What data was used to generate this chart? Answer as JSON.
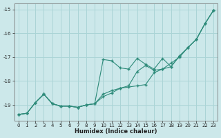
{
  "xlabel": "Humidex (Indice chaleur)",
  "bg_color": "#cce8ea",
  "grid_color": "#aad4d6",
  "line_color": "#2e8b7a",
  "x": [
    0,
    1,
    2,
    3,
    4,
    5,
    6,
    7,
    8,
    9,
    10,
    11,
    12,
    13,
    14,
    15,
    16,
    17,
    18,
    19,
    20,
    21,
    22,
    23
  ],
  "series1": [
    -19.4,
    -19.35,
    -18.9,
    -18.55,
    -18.95,
    -19.05,
    -19.05,
    -19.1,
    -19.0,
    -18.95,
    -17.1,
    -17.15,
    -17.45,
    -17.5,
    -17.05,
    -17.3,
    -17.5,
    -17.05,
    -17.4,
    -16.95,
    -16.6,
    -16.25,
    -15.6,
    -15.05
  ],
  "series2": [
    -19.4,
    -19.35,
    -18.9,
    -18.55,
    -18.95,
    -19.05,
    -19.05,
    -19.1,
    -19.0,
    -18.95,
    -18.55,
    -18.4,
    -18.3,
    -18.25,
    -18.2,
    -18.15,
    -17.65,
    -17.5,
    -17.4,
    -16.95,
    -16.6,
    -16.25,
    -15.6,
    -15.05
  ],
  "series3": [
    -19.4,
    -19.35,
    -18.9,
    -18.55,
    -18.95,
    -19.05,
    -19.05,
    -19.1,
    -19.0,
    -18.95,
    -18.65,
    -18.5,
    -18.3,
    -18.2,
    -17.6,
    -17.35,
    -17.55,
    -17.5,
    -17.25,
    -17.0,
    -16.6,
    -16.25,
    -15.6,
    -15.05
  ],
  "ylim": [
    -19.65,
    -14.75
  ],
  "xlim": [
    -0.5,
    23.5
  ],
  "yticks": [
    -19,
    -18,
    -17,
    -16,
    -15
  ],
  "xticks": [
    0,
    1,
    2,
    3,
    4,
    5,
    6,
    7,
    8,
    9,
    10,
    11,
    12,
    13,
    14,
    15,
    16,
    17,
    18,
    19,
    20,
    21,
    22,
    23
  ]
}
